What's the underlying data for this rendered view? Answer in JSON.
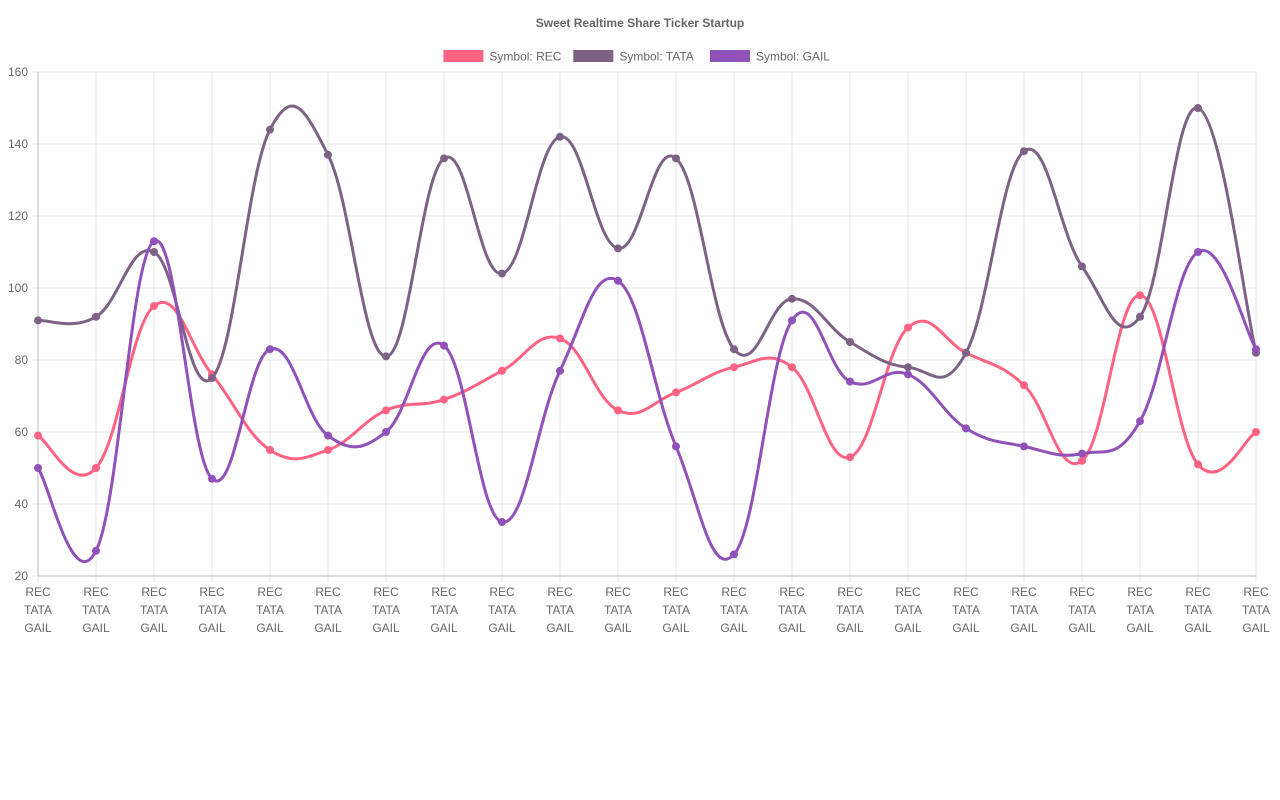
{
  "chart_data": {
    "type": "line",
    "title": "Sweet Realtime Share Ticker Startup",
    "x_tick_labels": [
      "REC",
      "TATA",
      "GAIL"
    ],
    "x_count": 22,
    "ylim": [
      20,
      160
    ],
    "y_ticks": [
      20,
      40,
      60,
      80,
      100,
      120,
      140,
      160
    ],
    "grid": true,
    "legend_position": "top",
    "interpolation": "smooth",
    "series": [
      {
        "name": "Symbol: REC",
        "color": "#ff6384",
        "values": [
          59,
          50,
          95,
          76,
          55,
          55,
          66,
          69,
          77,
          86,
          66,
          71,
          78,
          78,
          53,
          89,
          82,
          73,
          52,
          98,
          51,
          60
        ]
      },
      {
        "name": "Symbol: TATA",
        "color": "#7e6286",
        "values": [
          91,
          92,
          110,
          75,
          144,
          137,
          81,
          136,
          104,
          142,
          111,
          136,
          83,
          97,
          85,
          78,
          82,
          138,
          106,
          92,
          150,
          82
        ]
      },
      {
        "name": "Symbol: GAIL",
        "color": "#9052b8",
        "values": [
          50,
          27,
          113,
          47,
          83,
          59,
          60,
          84,
          35,
          77,
          102,
          56,
          26,
          91,
          74,
          76,
          61,
          56,
          54,
          63,
          110,
          83
        ]
      }
    ]
  }
}
